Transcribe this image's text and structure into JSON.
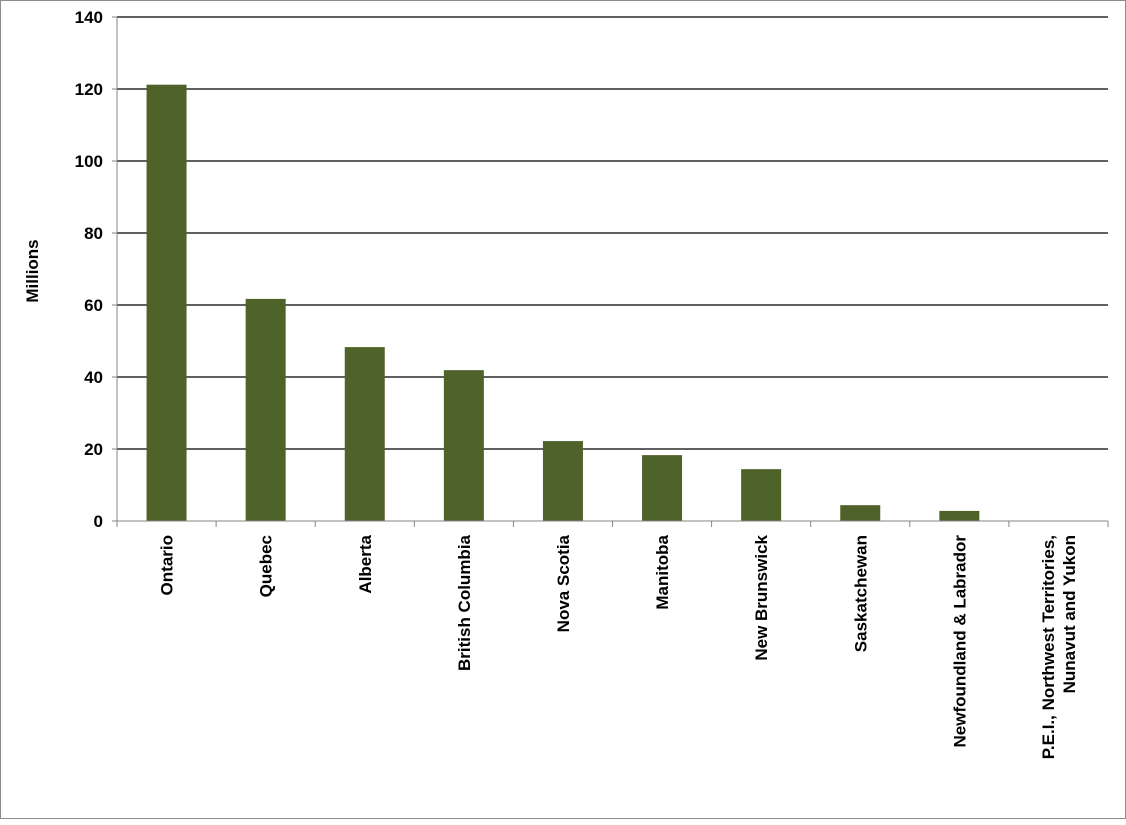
{
  "chart_data": {
    "type": "bar",
    "title": "",
    "xlabel": "",
    "ylabel": "Millions",
    "ylim": [
      0,
      140
    ],
    "yticks": [
      0,
      20,
      40,
      60,
      80,
      100,
      120,
      140
    ],
    "grid": true,
    "legend": "none",
    "bar_color": "#4f622a",
    "categories": [
      [
        "Ontario"
      ],
      [
        "Quebec"
      ],
      [
        "Alberta"
      ],
      [
        "British Columbia"
      ],
      [
        "Nova Scotia"
      ],
      [
        "Manitoba"
      ],
      [
        "New Brunswick"
      ],
      [
        "Saskatchewan"
      ],
      [
        "Newfoundland & Labrador"
      ],
      [
        "P.E.I., Northwest Territories,",
        "Nunavut and Yukon"
      ]
    ],
    "values": [
      121.2,
      61.7,
      48.3,
      41.9,
      22.2,
      18.3,
      14.4,
      4.4,
      2.8,
      0
    ]
  }
}
